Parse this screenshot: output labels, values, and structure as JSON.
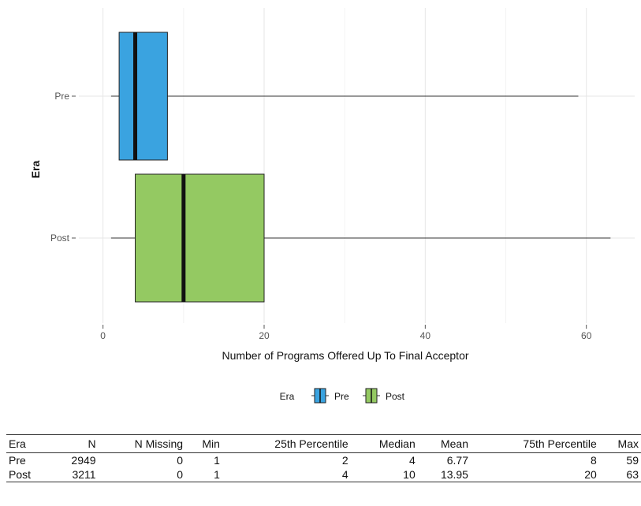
{
  "chart_data": {
    "type": "boxplot",
    "orientation": "horizontal",
    "xlabel": "Number of Programs Offered Up To Final Acceptor",
    "ylabel": "Era",
    "xlim": [
      -3,
      66
    ],
    "x_ticks": [
      0,
      20,
      40,
      60
    ],
    "grid": true,
    "legend": {
      "title": "Era",
      "placement": "bottom",
      "entries": [
        "Pre",
        "Post"
      ]
    },
    "series": [
      {
        "name": "Pre",
        "color": "#3aa3e0",
        "whisker_low": 1,
        "q1": 2,
        "median": 4,
        "q3": 8,
        "whisker_high": 59
      },
      {
        "name": "Post",
        "color": "#94c962",
        "whisker_low": 1,
        "q1": 4,
        "median": 10,
        "q3": 20,
        "whisker_high": 63
      }
    ]
  },
  "table": {
    "headers": [
      "Era",
      "N",
      "N Missing",
      "Min",
      "25th Percentile",
      "Median",
      "Mean",
      "75th Percentile",
      "Max"
    ],
    "rows": [
      [
        "Pre",
        "2949",
        "0",
        "1",
        "2",
        "4",
        "6.77",
        "8",
        "59"
      ],
      [
        "Post",
        "3211",
        "0",
        "1",
        "4",
        "10",
        "13.95",
        "20",
        "63"
      ]
    ]
  }
}
